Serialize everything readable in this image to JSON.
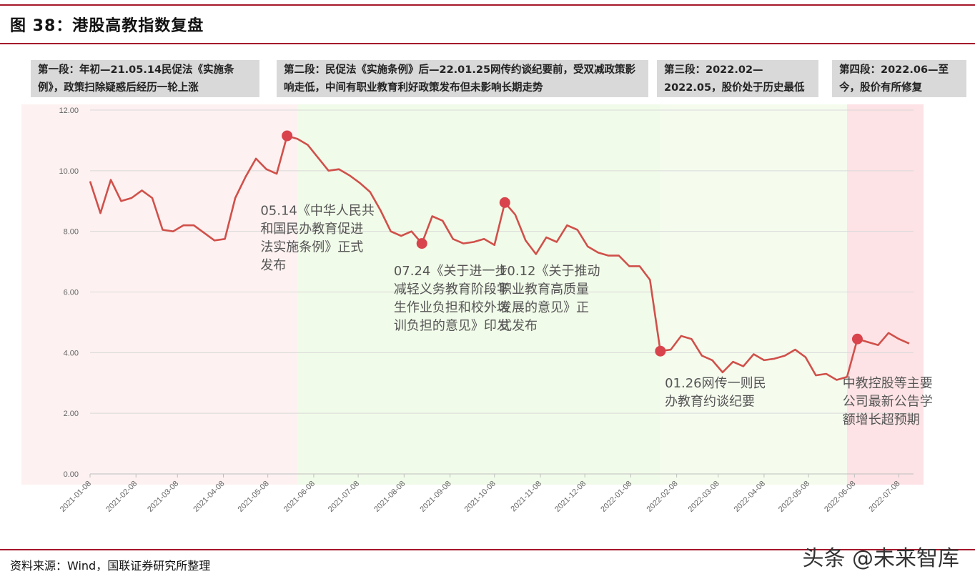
{
  "header": {
    "title": "图 38：港股高教指数复盘"
  },
  "phases": [
    "第一段：年初—21.05.14民促法《实施条例》，政策扫除疑惑后经历一轮上涨",
    "第二段：民促法《实施条例》后—22.01.25网传约谈纪要前，受双减政策影响走低，中间有职业教育利好政策发布但未影响长期走势",
    "第三段：2022.02—2022.05，股价处于历史最低位",
    "第四段：2022.06—至今，股价有所修复"
  ],
  "colors": {
    "line": "#d0504a",
    "marker": "#d9434b",
    "phase_pink": "#fdf1f1",
    "phase_green": "#f1fbe9",
    "phase_green_light": "#f5fcee",
    "phase_red": "#fde3e5",
    "rule": "#a5172b"
  },
  "chart_data": {
    "type": "line",
    "ylim": [
      0,
      12
    ],
    "yticks": [
      "0.00",
      "2.00",
      "4.00",
      "6.00",
      "8.00",
      "10.00",
      "12.00"
    ],
    "xticks": [
      "2021-01-08",
      "2021-02-08",
      "2021-03-08",
      "2021-04-08",
      "2021-05-08",
      "2021-06-08",
      "2021-07-08",
      "2021-08-08",
      "2021-09-08",
      "2021-10-08",
      "2021-11-08",
      "2021-12-08",
      "2022-01-08",
      "2022-02-08",
      "2022-03-08",
      "2022-04-08",
      "2022-05-08",
      "2022-06-08",
      "2022-07-08"
    ],
    "series": [
      {
        "points": [
          [
            "2021-01-08",
            9.65
          ],
          [
            "2021-01-15",
            8.6
          ],
          [
            "2021-01-22",
            9.7
          ],
          [
            "2021-01-29",
            9.0
          ],
          [
            "2021-02-05",
            9.1
          ],
          [
            "2021-02-12",
            9.35
          ],
          [
            "2021-02-19",
            9.1
          ],
          [
            "2021-02-26",
            8.05
          ],
          [
            "2021-03-05",
            8.0
          ],
          [
            "2021-03-12",
            8.2
          ],
          [
            "2021-03-19",
            8.2
          ],
          [
            "2021-03-26",
            7.95
          ],
          [
            "2021-04-02",
            7.7
          ],
          [
            "2021-04-09",
            7.75
          ],
          [
            "2021-04-16",
            9.1
          ],
          [
            "2021-04-23",
            9.8
          ],
          [
            "2021-04-30",
            10.4
          ],
          [
            "2021-05-07",
            10.05
          ],
          [
            "2021-05-14",
            9.9
          ],
          [
            "2021-05-21",
            11.15
          ],
          [
            "2021-05-28",
            11.05
          ],
          [
            "2021-06-04",
            10.85
          ],
          [
            "2021-06-18",
            10.0
          ],
          [
            "2021-06-25",
            10.05
          ],
          [
            "2021-07-02",
            9.85
          ],
          [
            "2021-07-09",
            9.6
          ],
          [
            "2021-07-16",
            9.3
          ],
          [
            "2021-07-23",
            8.7
          ],
          [
            "2021-07-30",
            8.0
          ],
          [
            "2021-08-06",
            7.85
          ],
          [
            "2021-08-13",
            8.0
          ],
          [
            "2021-08-20",
            7.6
          ],
          [
            "2021-08-27",
            8.5
          ],
          [
            "2021-09-03",
            8.35
          ],
          [
            "2021-09-10",
            7.75
          ],
          [
            "2021-09-17",
            7.6
          ],
          [
            "2021-09-24",
            7.65
          ],
          [
            "2021-10-01",
            7.75
          ],
          [
            "2021-10-08",
            7.55
          ],
          [
            "2021-10-15",
            8.95
          ],
          [
            "2021-10-22",
            8.55
          ],
          [
            "2021-10-29",
            7.7
          ],
          [
            "2021-11-05",
            7.25
          ],
          [
            "2021-11-12",
            7.8
          ],
          [
            "2021-11-19",
            7.65
          ],
          [
            "2021-11-26",
            8.2
          ],
          [
            "2021-12-03",
            8.05
          ],
          [
            "2021-12-10",
            7.5
          ],
          [
            "2021-12-17",
            7.3
          ],
          [
            "2021-12-24",
            7.2
          ],
          [
            "2021-12-31",
            7.2
          ],
          [
            "2022-01-07",
            6.85
          ],
          [
            "2022-01-14",
            6.85
          ],
          [
            "2022-01-21",
            6.4
          ],
          [
            "2022-01-28",
            4.05
          ],
          [
            "2022-02-04",
            4.1
          ],
          [
            "2022-02-11",
            4.55
          ],
          [
            "2022-02-18",
            4.45
          ],
          [
            "2022-02-25",
            3.9
          ],
          [
            "2022-03-04",
            3.75
          ],
          [
            "2022-03-11",
            3.35
          ],
          [
            "2022-03-18",
            3.7
          ],
          [
            "2022-03-25",
            3.55
          ],
          [
            "2022-04-01",
            3.95
          ],
          [
            "2022-04-08",
            3.75
          ],
          [
            "2022-04-15",
            3.8
          ],
          [
            "2022-04-22",
            3.9
          ],
          [
            "2022-04-29",
            4.1
          ],
          [
            "2022-05-06",
            3.85
          ],
          [
            "2022-05-13",
            3.25
          ],
          [
            "2022-05-20",
            3.3
          ],
          [
            "2022-05-27",
            3.1
          ],
          [
            "2022-06-03",
            3.2
          ],
          [
            "2022-06-10",
            4.45
          ],
          [
            "2022-06-17",
            4.35
          ],
          [
            "2022-06-24",
            4.25
          ],
          [
            "2022-07-01",
            4.65
          ],
          [
            "2022-07-08",
            4.45
          ],
          [
            "2022-07-15",
            4.3
          ]
        ]
      }
    ],
    "phases": [
      {
        "start": "2020-12-30",
        "end": "2021-05-28",
        "color": "phase_pink"
      },
      {
        "start": "2021-05-28",
        "end": "2022-01-28",
        "color": "phase_green"
      },
      {
        "start": "2022-01-28",
        "end": "2022-06-03",
        "color": "phase_green_light"
      },
      {
        "start": "2022-06-03",
        "end": "2022-07-18",
        "color": "phase_red"
      }
    ],
    "annotations": [
      {
        "x": "2021-05-21",
        "y": 11.15,
        "lines": [
          "05.14《中华人民共",
          "和国民办教育促进",
          "法实施条例》正式",
          "发布"
        ],
        "text_x": "2021-05-03",
        "text_y": 8.55
      },
      {
        "x": "2021-08-20",
        "y": 7.6,
        "lines": [
          "07.24《关于进一步",
          "减轻义务教育阶段学",
          "生作业负担和校外培",
          "训负担的意见》印发"
        ],
        "text_x": "2021-08-01",
        "text_y": 6.55
      },
      {
        "x": "2021-10-15",
        "y": 8.95,
        "lines": [
          "10.12《关于推动",
          "职业教育高质量",
          "发展的意见》正",
          "式发布"
        ],
        "text_x": "2021-10-11",
        "text_y": 6.55
      },
      {
        "x": "2022-01-28",
        "y": 4.05,
        "lines": [
          "01.26网传一则民",
          "办教育约谈纪要"
        ],
        "text_x": "2022-01-31",
        "text_y": 2.85
      },
      {
        "x": "2022-06-10",
        "y": 4.45,
        "lines": [
          "中教控股等主要",
          "公司最新公告学",
          "额增长超预期"
        ],
        "text_x": "2022-05-31",
        "text_y": 2.85
      }
    ]
  },
  "footer": {
    "source": "资料来源：Wind，国联证券研究所整理",
    "watermark": "头条 @未来智库"
  }
}
